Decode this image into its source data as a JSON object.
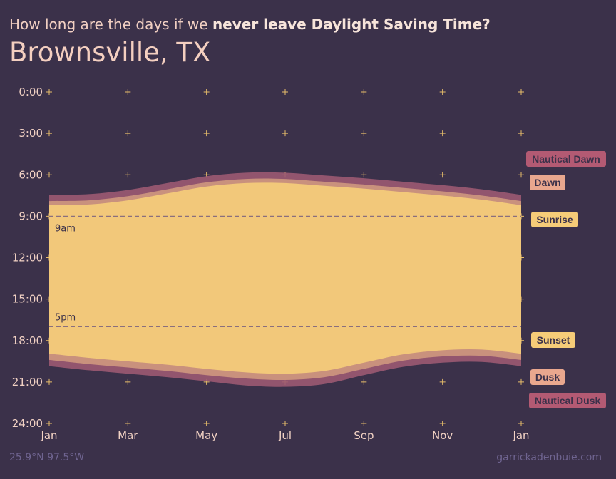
{
  "header": {
    "subtitle_prefix": "How long are the days if we ",
    "subtitle_emphasis": "never leave Daylight Saving Time?",
    "title": "Brownsville, TX"
  },
  "footer": {
    "coords": "25.9°N 97.5°W",
    "credit": "garrickadenbuie.com"
  },
  "colors": {
    "background": "#3b314a",
    "day": "#f2c87a",
    "civil": "#c9917d",
    "nautical": "#9c5a72",
    "sunrise_tag": "#f6cc78",
    "dawn_tag": "#e9a78e",
    "nautical_tag": "#b35a73"
  },
  "chart_data": {
    "type": "area",
    "y_ticks": [
      "0:00",
      "3:00",
      "6:00",
      "9:00",
      "12:00",
      "15:00",
      "18:00",
      "21:00",
      "24:00"
    ],
    "x_ticks": [
      "Jan",
      "Mar",
      "May",
      "Jul",
      "Sep",
      "Nov",
      "Jan"
    ],
    "ylim": [
      0,
      24
    ],
    "reference_lines": [
      {
        "label": "9am",
        "hour": 9
      },
      {
        "label": "5pm",
        "hour": 17
      }
    ],
    "months": [
      1,
      2,
      3,
      4,
      5,
      6,
      7,
      8,
      9,
      10,
      11,
      12,
      13
    ],
    "series": [
      {
        "name": "Nautical Dawn",
        "values": [
          7.45,
          7.4,
          7.1,
          6.6,
          6.1,
          5.85,
          5.85,
          6.05,
          6.25,
          6.5,
          6.75,
          7.05,
          7.45
        ]
      },
      {
        "name": "Dawn",
        "values": [
          7.9,
          7.85,
          7.55,
          7.05,
          6.55,
          6.3,
          6.3,
          6.5,
          6.7,
          6.95,
          7.2,
          7.5,
          7.9
        ]
      },
      {
        "name": "Sunrise",
        "values": [
          8.2,
          8.15,
          7.85,
          7.35,
          6.85,
          6.6,
          6.6,
          6.8,
          7.0,
          7.25,
          7.5,
          7.8,
          8.2
        ]
      },
      {
        "name": "Sunset",
        "values": [
          18.95,
          19.25,
          19.5,
          19.75,
          20.05,
          20.3,
          20.4,
          20.2,
          19.6,
          19.0,
          18.7,
          18.65,
          18.95
        ]
      },
      {
        "name": "Dusk",
        "values": [
          19.4,
          19.7,
          19.95,
          20.2,
          20.5,
          20.75,
          20.85,
          20.65,
          20.05,
          19.45,
          19.15,
          19.1,
          19.4
        ]
      },
      {
        "name": "Nautical Dusk",
        "values": [
          19.85,
          20.15,
          20.4,
          20.65,
          20.95,
          21.25,
          21.35,
          21.15,
          20.5,
          19.9,
          19.6,
          19.55,
          19.85
        ]
      }
    ]
  }
}
